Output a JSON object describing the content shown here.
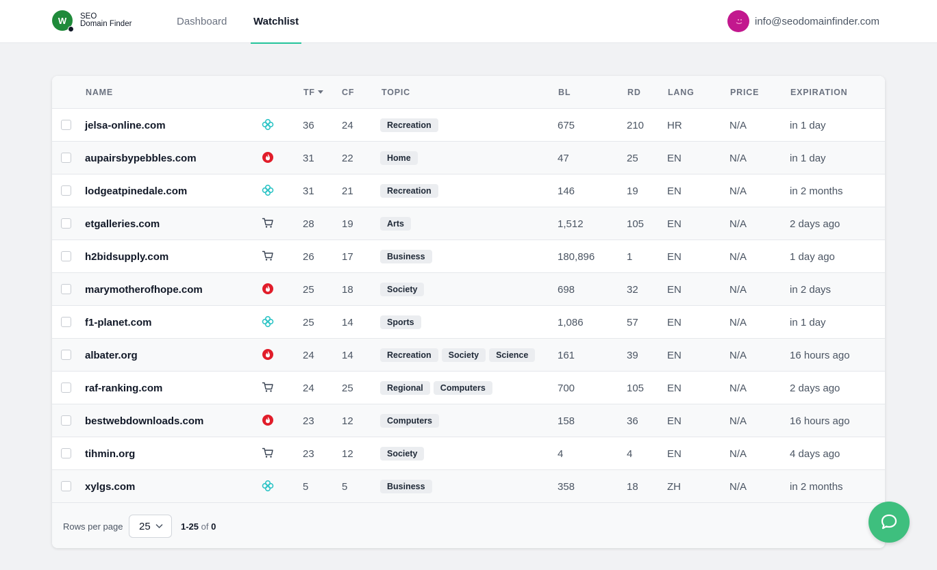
{
  "brand": {
    "logo_letter": "W",
    "line1": "SEO",
    "line2": "Domain Finder"
  },
  "nav": {
    "dashboard": "Dashboard",
    "watchlist": "Watchlist",
    "active": "watchlist"
  },
  "user": {
    "email": "info@seodomainfinder.com",
    "avatar_color": "#c2188e"
  },
  "colors": {
    "accent": "#22c39a",
    "chat": "#3ebf7e",
    "icon_teal": "#2ec4c6",
    "icon_red": "#e11d2a"
  },
  "table": {
    "headers": {
      "name": "NAME",
      "tf": "TF",
      "cf": "CF",
      "topic": "TOPIC",
      "bl": "BL",
      "rd": "RD",
      "lang": "LANG",
      "price": "PRICE",
      "expiration": "EXPIRATION"
    },
    "sort": {
      "column": "TF",
      "direction": "desc"
    },
    "rows": [
      {
        "name": "jelsa-online.com",
        "icon": "flower-icon",
        "tf": "36",
        "cf": "24",
        "topics": [
          "Recreation"
        ],
        "bl": "675",
        "rd": "210",
        "lang": "HR",
        "price": "N/A",
        "expiration": "in 1 day"
      },
      {
        "name": "aupairsbypebbles.com",
        "icon": "auction-icon",
        "tf": "31",
        "cf": "22",
        "topics": [
          "Home"
        ],
        "bl": "47",
        "rd": "25",
        "lang": "EN",
        "price": "N/A",
        "expiration": "in 1 day"
      },
      {
        "name": "lodgeatpinedale.com",
        "icon": "flower-icon",
        "tf": "31",
        "cf": "21",
        "topics": [
          "Recreation"
        ],
        "bl": "146",
        "rd": "19",
        "lang": "EN",
        "price": "N/A",
        "expiration": "in 2 months"
      },
      {
        "name": "etgalleries.com",
        "icon": "cart-icon",
        "tf": "28",
        "cf": "19",
        "topics": [
          "Arts"
        ],
        "bl": "1,512",
        "rd": "105",
        "lang": "EN",
        "price": "N/A",
        "expiration": "2 days ago"
      },
      {
        "name": "h2bidsupply.com",
        "icon": "cart-icon",
        "tf": "26",
        "cf": "17",
        "topics": [
          "Business"
        ],
        "bl": "180,896",
        "rd": "1",
        "lang": "EN",
        "price": "N/A",
        "expiration": "1 day ago"
      },
      {
        "name": "marymotherofhope.com",
        "icon": "auction-icon",
        "tf": "25",
        "cf": "18",
        "topics": [
          "Society"
        ],
        "bl": "698",
        "rd": "32",
        "lang": "EN",
        "price": "N/A",
        "expiration": "in 2 days"
      },
      {
        "name": "f1-planet.com",
        "icon": "flower-icon",
        "tf": "25",
        "cf": "14",
        "topics": [
          "Sports"
        ],
        "bl": "1,086",
        "rd": "57",
        "lang": "EN",
        "price": "N/A",
        "expiration": "in 1 day"
      },
      {
        "name": "albater.org",
        "icon": "auction-icon",
        "tf": "24",
        "cf": "14",
        "topics": [
          "Recreation",
          "Society",
          "Science"
        ],
        "bl": "161",
        "rd": "39",
        "lang": "EN",
        "price": "N/A",
        "expiration": "16 hours ago"
      },
      {
        "name": "raf-ranking.com",
        "icon": "cart-icon",
        "tf": "24",
        "cf": "25",
        "topics": [
          "Regional",
          "Computers"
        ],
        "bl": "700",
        "rd": "105",
        "lang": "EN",
        "price": "N/A",
        "expiration": "2 days ago"
      },
      {
        "name": "bestwebdownloads.com",
        "icon": "auction-icon",
        "tf": "23",
        "cf": "12",
        "topics": [
          "Computers"
        ],
        "bl": "158",
        "rd": "36",
        "lang": "EN",
        "price": "N/A",
        "expiration": "16 hours ago"
      },
      {
        "name": "tihmin.org",
        "icon": "cart-icon",
        "tf": "23",
        "cf": "12",
        "topics": [
          "Society"
        ],
        "bl": "4",
        "rd": "4",
        "lang": "EN",
        "price": "N/A",
        "expiration": "4 days ago"
      },
      {
        "name": "xylgs.com",
        "icon": "flower-icon",
        "tf": "5",
        "cf": "5",
        "topics": [
          "Business"
        ],
        "bl": "358",
        "rd": "18",
        "lang": "ZH",
        "price": "N/A",
        "expiration": "in 2 months"
      }
    ]
  },
  "pagination": {
    "rows_label": "Rows per page",
    "rows_value": "25",
    "range": "1-25",
    "of": "of",
    "total": "0"
  }
}
